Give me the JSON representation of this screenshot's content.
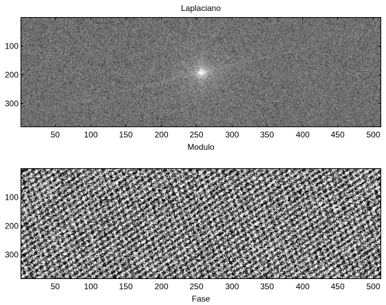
{
  "figure": {
    "title": "Laplaciano",
    "background": "#ffffff",
    "axes_color": "#000000"
  },
  "panels": [
    {
      "name": "modulo",
      "xlabel": "Modulo",
      "image_style": "fft-magnitude-spectrum",
      "colormap": "gray",
      "xlim": [
        1,
        512
      ],
      "ylim": [
        1,
        384
      ],
      "xticks": [
        50,
        100,
        150,
        200,
        250,
        300,
        350,
        400,
        450,
        500
      ],
      "yticks": [
        100,
        200,
        300
      ],
      "xtick_labels": [
        "50",
        "100",
        "150",
        "200",
        "250",
        "300",
        "350",
        "400",
        "450",
        "500"
      ],
      "ytick_labels": [
        "100",
        "200",
        "300"
      ],
      "center": [
        257,
        193
      ]
    },
    {
      "name": "fase",
      "xlabel": "Fase",
      "image_style": "fft-phase-spectrum",
      "colormap": "gray",
      "xlim": [
        1,
        512
      ],
      "ylim": [
        1,
        384
      ],
      "xticks": [
        50,
        100,
        150,
        200,
        250,
        300,
        350,
        400,
        450,
        500
      ],
      "yticks": [
        100,
        200,
        300
      ],
      "xtick_labels": [
        "50",
        "100",
        "150",
        "200",
        "250",
        "300",
        "350",
        "400",
        "450",
        "500"
      ],
      "ytick_labels": [
        "100",
        "200",
        "300"
      ]
    }
  ]
}
